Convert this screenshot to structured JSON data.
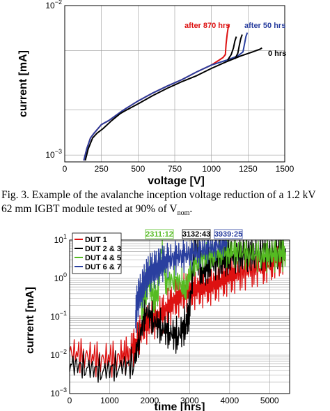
{
  "fig1": {
    "chart_data": {
      "type": "line",
      "xlabel": "voltage [V]",
      "ylabel": "current [mA]",
      "xlim": [
        0,
        1500
      ],
      "ylim": [
        0.0009,
        0.01
      ],
      "log_y": true,
      "grid": true,
      "xticks": [
        0,
        250,
        500,
        750,
        1000,
        1250,
        1500
      ],
      "xtick_labels": [
        "0",
        "250",
        "500",
        "750",
        "1000",
        "1250",
        "1500"
      ],
      "ytick_labels": [
        {
          "base": "10",
          "exp": "−3",
          "value": 0.001
        },
        {
          "base": "10",
          "exp": "−2",
          "value": 0.01
        }
      ],
      "series": [
        {
          "name": "after 870 hrs",
          "color": "#dd1111",
          "x": [
            130,
            150,
            175,
            200,
            250,
            300,
            400,
            500,
            600,
            700,
            800,
            900,
            1000,
            1050,
            1080,
            1095,
            1100,
            1108,
            1115,
            1122
          ],
          "y": [
            0.00092,
            0.0011,
            0.0013,
            0.0014,
            0.0016,
            0.0017,
            0.002,
            0.0023,
            0.0026,
            0.0029,
            0.0032,
            0.0036,
            0.004,
            0.0043,
            0.0045,
            0.0047,
            0.0055,
            0.0065,
            0.0072,
            0.0075
          ]
        },
        {
          "name": "after 50 hrs",
          "color": "#2a3f9f",
          "x": [
            130,
            150,
            175,
            200,
            250,
            300,
            400,
            500,
            600,
            700,
            800,
            900,
            1000,
            1100,
            1180,
            1215,
            1225,
            1235,
            1245
          ],
          "y": [
            0.00092,
            0.0011,
            0.0013,
            0.0014,
            0.0016,
            0.0017,
            0.002,
            0.0023,
            0.0026,
            0.0029,
            0.0032,
            0.0036,
            0.004,
            0.0043,
            0.0046,
            0.0049,
            0.0055,
            0.0062,
            0.0066
          ]
        },
        {
          "name": "0 hrs",
          "color": "#000000",
          "x": [
            140,
            160,
            190,
            220,
            260,
            320,
            380,
            420,
            500,
            600,
            700,
            800,
            900,
            1000,
            1100,
            1200,
            1280,
            1330,
            1345
          ],
          "y": [
            0.00092,
            0.0011,
            0.0013,
            0.0014,
            0.0015,
            0.0017,
            0.0019,
            0.002,
            0.0022,
            0.0025,
            0.0028,
            0.0031,
            0.0034,
            0.0038,
            0.0042,
            0.0046,
            0.0049,
            0.0051,
            0.0052
          ]
        },
        {
          "name": "",
          "color": "#000000",
          "x": [
            1110,
            1135,
            1150,
            1160,
            1170
          ],
          "y": [
            0.0043,
            0.0047,
            0.0052,
            0.0058,
            0.0062
          ]
        },
        {
          "name": "",
          "color": "#000000",
          "x": [
            1160,
            1180,
            1190,
            1200,
            1210
          ],
          "y": [
            0.0044,
            0.0048,
            0.0054,
            0.006,
            0.0064
          ]
        }
      ],
      "annotations": [
        {
          "text": "after 870 hrs",
          "color": "#dd1111"
        },
        {
          "text": "after 50 hrs",
          "color": "#2a3f9f"
        },
        {
          "text": "0 hrs",
          "color": "#000000"
        }
      ]
    }
  },
  "caption": {
    "line1": "Fig. 3.  Example of the avalanche inception voltage reduction of a 1.2 kV",
    "line2_a": "62 mm IGBT module tested at 90% of V",
    "line2_sub": "nom",
    "line2_b": "."
  },
  "fig2": {
    "chart_data": {
      "type": "line",
      "xlabel": "time [hrs]",
      "ylabel": "current [mA]",
      "xlim": [
        0,
        5500
      ],
      "ylim": [
        0.001,
        10
      ],
      "log_y": true,
      "grid": true,
      "xticks": [
        0,
        1000,
        2000,
        3000,
        4000,
        5000
      ],
      "xtick_labels": [
        "0",
        "1000",
        "2000",
        "3000",
        "4000",
        "5000"
      ],
      "ytick_labels": [
        {
          "base": "10",
          "exp": "−3",
          "value": 0.001
        },
        {
          "base": "10",
          "exp": "−2",
          "value": 0.01
        },
        {
          "base": "10",
          "exp": "−1",
          "value": 0.1
        },
        {
          "base": "10",
          "exp": "0",
          "value": 1
        },
        {
          "base": "10",
          "exp": "1",
          "value": 10
        }
      ],
      "legend": {
        "position": "top-left",
        "items": [
          {
            "label": "DUT 1",
            "color": "#dd1111"
          },
          {
            "label": "DUT 2 & 3",
            "color": "#000000"
          },
          {
            "label": "DUT 4 & 5",
            "color": "#55bb22"
          },
          {
            "label": "DUT 6 & 7",
            "color": "#2a3f9f"
          }
        ]
      },
      "series": [
        {
          "name": "DUT 1",
          "color": "#dd1111",
          "x": [
            0,
            400,
            800,
            1200,
            1500,
            1650,
            1800,
            2000,
            2200,
            2400,
            2600,
            2800,
            3000,
            3200,
            3400,
            3600,
            3800,
            4000,
            4200,
            4500,
            4800,
            5000,
            5200,
            5400
          ],
          "y": [
            0.012,
            0.01,
            0.008,
            0.009,
            0.012,
            0.02,
            0.05,
            0.08,
            0.1,
            0.15,
            0.25,
            0.4,
            0.5,
            0.55,
            0.6,
            0.7,
            0.9,
            1.2,
            1.3,
            1.6,
            1.9,
            2.4,
            3.0,
            3.5
          ]
        },
        {
          "name": "DUT 2 & 3",
          "color": "#000000",
          "x": [
            0,
            400,
            800,
            1200,
            1600,
            1750,
            1900,
            2100,
            2300,
            2500,
            2700,
            2900,
            3000,
            3132,
            3300,
            3500,
            3800,
            4000,
            4300,
            4600,
            5000,
            5400
          ],
          "y": [
            0.006,
            0.005,
            0.004,
            0.005,
            0.006,
            0.03,
            0.15,
            0.08,
            0.05,
            0.04,
            0.03,
            0.06,
            0.15,
            8.0,
            1.5,
            2.5,
            3.0,
            4.0,
            4.5,
            5.0,
            5.5,
            6.0
          ]
        },
        {
          "name": "DUT 4 & 5",
          "color": "#55bb22",
          "x": [
            1800,
            1900,
            2000,
            2100,
            2200,
            2311,
            2400,
            2600,
            2800,
            2900,
            3000,
            3200,
            3400,
            3600,
            3800,
            4000,
            4200,
            4500,
            4800,
            5000,
            5200,
            5400
          ],
          "y": [
            0.2,
            0.5,
            1.0,
            0.3,
            0.4,
            9.0,
            0.8,
            1.0,
            0.8,
            0.5,
            1.5,
            3.0,
            4.0,
            4.2,
            4.5,
            5.0,
            5.0,
            4.5,
            4.0,
            4.2,
            4.5,
            4.8
          ]
        },
        {
          "name": "DUT 6 & 7",
          "color": "#2a3f9f",
          "x": [
            1650,
            1700,
            1800,
            1900,
            2000,
            2100,
            2200,
            2300,
            2400,
            2600,
            2800,
            3000,
            3200,
            3400,
            3600,
            3800,
            3939
          ],
          "y": [
            0.1,
            0.3,
            0.5,
            1.0,
            1.5,
            1.8,
            2.0,
            2.5,
            3.0,
            3.5,
            4.0,
            4.5,
            5.0,
            6.0,
            7.0,
            8.0,
            9.0
          ]
        }
      ],
      "annotations": [
        {
          "text": "2311:12",
          "color": "#55bb22"
        },
        {
          "text": "3132:43",
          "color": "#000000"
        },
        {
          "text": "3939:25",
          "color": "#2a3f9f"
        }
      ]
    }
  }
}
